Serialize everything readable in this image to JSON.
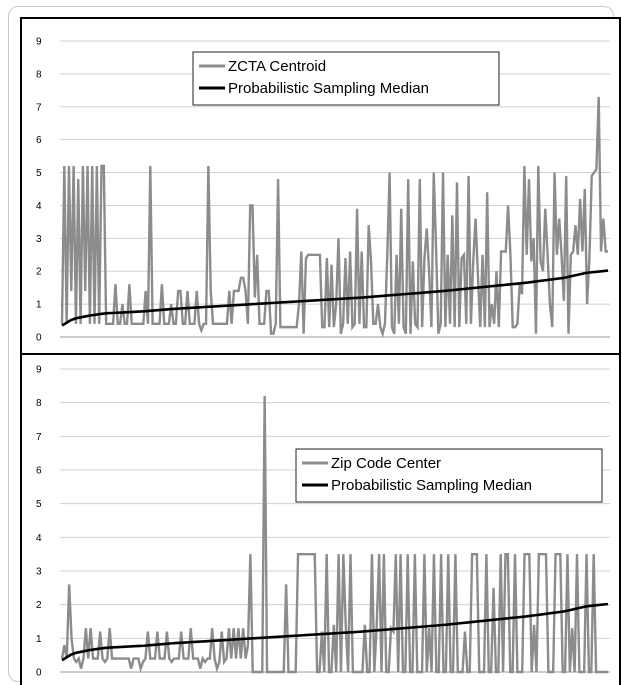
{
  "chart_data": [
    {
      "type": "line",
      "title": "",
      "xlabel": "",
      "ylabel": "",
      "ylim": [
        0,
        9
      ],
      "yticks": [
        "0",
        "1",
        "2",
        "3",
        "4",
        "5",
        "6",
        "7",
        "8",
        "9"
      ],
      "grid": true,
      "legend_position": "top-center",
      "series": [
        {
          "name": "ZCTA Centroid",
          "color": "#8c8c8c",
          "values": [
            0.4,
            5.2,
            0.4,
            5.2,
            1.4,
            5.2,
            0.4,
            4.8,
            0.4,
            5.2,
            1.4,
            5.2,
            0.4,
            5.2,
            0.4,
            5.2,
            0.4,
            5.2,
            5.2,
            0.4,
            0.4,
            0.4,
            0.4,
            1.6,
            0.4,
            0.4,
            1.0,
            0.4,
            0.4,
            1.6,
            0.4,
            0.4,
            0.4,
            0.4,
            0.4,
            0.4,
            1.4,
            0.4,
            5.2,
            0.4,
            0.4,
            0.4,
            0.4,
            1.6,
            0.4,
            0.4,
            0.4,
            1.0,
            0.4,
            0.4,
            1.4,
            1.4,
            0.4,
            0.4,
            1.4,
            0.4,
            0.4,
            0.4,
            1.4,
            0.4,
            0.2,
            0.4,
            0.4,
            5.2,
            1.4,
            0.4,
            0.4,
            0.4,
            0.4,
            0.4,
            0.4,
            0.4,
            1.4,
            0.4,
            1.4,
            1.4,
            1.4,
            1.8,
            1.8,
            1.4,
            0.4,
            4.0,
            4.0,
            1.2,
            2.5,
            0.4,
            0.4,
            0.4,
            1.4,
            1.4,
            0.1,
            0.1,
            0.4,
            4.8,
            0.3,
            0.3,
            0.3,
            0.3,
            0.3,
            0.3,
            0.3,
            0.3,
            1.0,
            2.6,
            0.1,
            2.4,
            2.5,
            2.5,
            2.5,
            2.5,
            2.5,
            2.5,
            0.3,
            0.3,
            2.4,
            0.3,
            2.2,
            0.3,
            1.0,
            3.0,
            0.1,
            0.4,
            2.4,
            0.4,
            2.6,
            0.3,
            0.4,
            3.9,
            0.4,
            2.6,
            0.3,
            0.3,
            3.4,
            2.3,
            0.4,
            0.4,
            1.0,
            0.3,
            0.1,
            0.4,
            2.5,
            5.0,
            0.3,
            0.1,
            2.5,
            0.4,
            3.9,
            0.3,
            0.1,
            4.8,
            0.1,
            2.3,
            0.4,
            0.3,
            4.8,
            0.3,
            2.4,
            3.3,
            2.0,
            0.3,
            5.0,
            2.7,
            0.1,
            0.4,
            5.0,
            0.3,
            2.5,
            0.4,
            3.7,
            0.3,
            4.7,
            0.3,
            2.4,
            2.5,
            0.4,
            4.9,
            0.4,
            2.3,
            3.6,
            1.9,
            0.3,
            2.5,
            0.3,
            4.4,
            0.3,
            1.0,
            0.4,
            2.0,
            0.3,
            2.6,
            2.6,
            2.6,
            4.0,
            2.5,
            0.3,
            0.3,
            0.4,
            1.6,
            1.3,
            5.2,
            2.5,
            4.8,
            2.3,
            3.0,
            0.1,
            5.2,
            2.3,
            2.0,
            3.9,
            2.5,
            1.0,
            0.3,
            5.0,
            2.5,
            3.6,
            2.5,
            1.1,
            4.9,
            0.1,
            2.5,
            2.6,
            3.4,
            2.5,
            4.2,
            2.6,
            4.5,
            1.0,
            2.4,
            4.9,
            5.0,
            5.1,
            7.3,
            2.6,
            3.6,
            2.6,
            2.6
          ]
        },
        {
          "name": "Probabilistic Sampling Median",
          "color": "#000000",
          "x_range": [
            0,
            1
          ],
          "keypoints": [
            [
              0,
              0.35
            ],
            [
              0.02,
              0.55
            ],
            [
              0.05,
              0.65
            ],
            [
              0.08,
              0.72
            ],
            [
              0.15,
              0.78
            ],
            [
              0.2,
              0.85
            ],
            [
              0.3,
              0.95
            ],
            [
              0.45,
              1.1
            ],
            [
              0.55,
              1.2
            ],
            [
              0.7,
              1.4
            ],
            [
              0.85,
              1.65
            ],
            [
              0.92,
              1.8
            ],
            [
              0.96,
              1.95
            ],
            [
              1.0,
              2.02
            ]
          ]
        }
      ]
    },
    {
      "type": "line",
      "title": "",
      "xlabel": "",
      "ylabel": "",
      "ylim": [
        0,
        9
      ],
      "yticks": [
        "0",
        "1",
        "2",
        "3",
        "4",
        "5",
        "6",
        "7",
        "8",
        "9"
      ],
      "grid": true,
      "legend_position": "center-right",
      "series": [
        {
          "name": "Zip Code Center",
          "color": "#8c8c8c",
          "values": [
            0.4,
            0.8,
            0.4,
            2.6,
            1.0,
            0.4,
            0.3,
            0.4,
            0.1,
            0.4,
            1.3,
            0.4,
            1.3,
            0.4,
            0.4,
            0.4,
            1.2,
            0.4,
            0.3,
            0.4,
            1.3,
            0.4,
            0.4,
            0.4,
            0.4,
            0.4,
            0.4,
            0.4,
            0.4,
            0.1,
            0.4,
            0.4,
            0.4,
            0.1,
            0.3,
            0.4,
            1.2,
            0.4,
            0.4,
            0.4,
            1.2,
            0.4,
            0.4,
            0.4,
            1.2,
            0.4,
            0.3,
            0.4,
            0.4,
            0.4,
            1.2,
            0.4,
            0.4,
            0.4,
            1.3,
            0.4,
            0.4,
            0.4,
            0.1,
            0.4,
            0.3,
            0.4,
            0.4,
            1.3,
            0.4,
            0.1,
            0.3,
            1.2,
            0.3,
            0.4,
            1.3,
            0.4,
            1.3,
            0.4,
            1.3,
            0.4,
            1.3,
            0.4,
            0.8,
            3.5,
            0.0,
            0.0,
            0.0,
            0.0,
            0.0,
            8.2,
            0.0,
            0.0,
            0.0,
            0.0,
            0.0,
            0.0,
            0.0,
            0.0,
            2.6,
            0.0,
            0.0,
            0.0,
            0.0,
            3.5,
            3.5,
            3.5,
            3.5,
            3.5,
            3.5,
            3.5,
            3.5,
            0.0,
            0.0,
            1.2,
            0.0,
            3.5,
            0.0,
            0.0,
            1.4,
            0.0,
            3.5,
            0.0,
            3.5,
            1.4,
            0.0,
            3.5,
            0.0,
            0.0,
            0.0,
            0.0,
            0.0,
            1.4,
            0.0,
            0.0,
            3.5,
            0.0,
            1.4,
            3.5,
            0.0,
            3.5,
            0.0,
            0.0,
            1.3,
            1.2,
            3.5,
            0.0,
            3.5,
            0.0,
            0.0,
            3.5,
            0.0,
            0.0,
            3.5,
            0.0,
            0.0,
            0.0,
            3.5,
            0.0,
            1.3,
            0.0,
            3.5,
            0.0,
            0.0,
            3.5,
            0.0,
            0.0,
            3.5,
            0.0,
            0.0,
            3.5,
            0.0,
            0.0,
            0.0,
            1.2,
            0.0,
            0.0,
            3.5,
            3.5,
            3.5,
            0.0,
            0.0,
            0.0,
            3.5,
            0.0,
            0.0,
            2.5,
            0.0,
            0.0,
            3.5,
            0.0,
            3.5,
            3.5,
            0.0,
            0.0,
            3.5,
            0.0,
            0.0,
            0.0,
            3.5,
            3.5,
            3.5,
            0.0,
            1.4,
            0.0,
            3.5,
            3.5,
            3.5,
            3.5,
            0.0,
            0.0,
            0.0,
            3.5,
            3.5,
            3.5,
            0.0,
            0.0,
            3.5,
            0.0,
            1.3,
            0.0,
            3.5,
            0.0,
            0.0,
            0.0,
            3.5,
            0.0,
            0.0,
            3.5,
            0.0,
            0.0,
            0.0,
            0.0,
            0.0,
            0.0
          ]
        },
        {
          "name": "Probabilistic Sampling Median",
          "color": "#000000",
          "x_range": [
            0,
            1
          ],
          "keypoints": [
            [
              0,
              0.35
            ],
            [
              0.02,
              0.55
            ],
            [
              0.05,
              0.65
            ],
            [
              0.08,
              0.72
            ],
            [
              0.15,
              0.78
            ],
            [
              0.2,
              0.85
            ],
            [
              0.3,
              0.95
            ],
            [
              0.45,
              1.1
            ],
            [
              0.55,
              1.2
            ],
            [
              0.7,
              1.4
            ],
            [
              0.85,
              1.65
            ],
            [
              0.92,
              1.8
            ],
            [
              0.96,
              1.95
            ],
            [
              1.0,
              2.02
            ]
          ]
        }
      ]
    }
  ]
}
